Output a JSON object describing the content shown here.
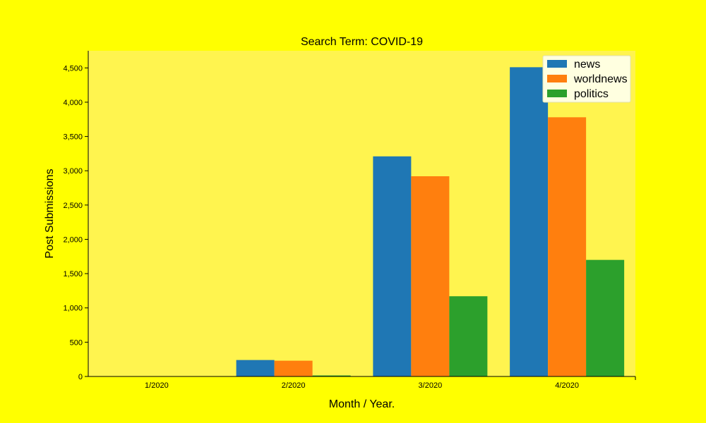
{
  "colors": {
    "page_background": "#ffff00",
    "plot_background": "#fff44f",
    "legend_background": "#ffffe0"
  },
  "chart_data": {
    "type": "bar",
    "title": "Search Term: COVID-19",
    "xlabel": "Month / Year.",
    "ylabel": "Post Submissions",
    "categories": [
      "1/2020",
      "2/2020",
      "3/2020",
      "4/2020"
    ],
    "series": [
      {
        "name": "news",
        "color": "#1f77b4",
        "values": [
          0,
          240,
          3210,
          4510
        ]
      },
      {
        "name": "worldnews",
        "color": "#ff7f0e",
        "values": [
          0,
          230,
          2920,
          3780
        ]
      },
      {
        "name": "politics",
        "color": "#2ca02c",
        "values": [
          0,
          15,
          1170,
          1700
        ]
      }
    ],
    "ylim": [
      0,
      4750
    ],
    "yticks": [
      0,
      500,
      1000,
      1500,
      2000,
      2500,
      3000,
      3500,
      4000,
      4500
    ],
    "ytick_labels": [
      "0",
      "500",
      "1,000",
      "1,500",
      "2,000",
      "2,500",
      "3,000",
      "3,500",
      "4,000",
      "4,500"
    ],
    "legend_position": "top-right",
    "grid": false
  }
}
